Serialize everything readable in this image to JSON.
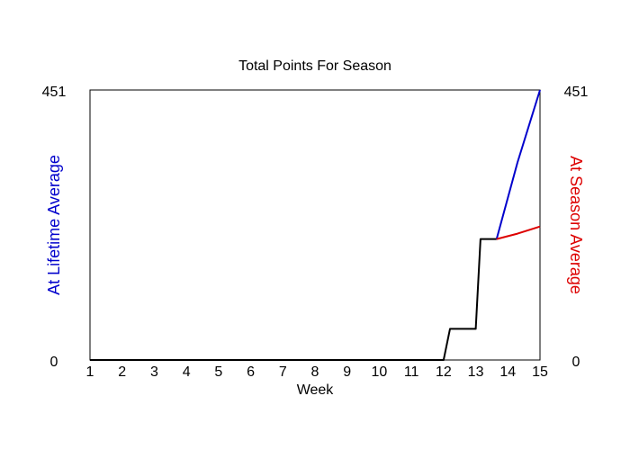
{
  "chart_data": {
    "type": "line",
    "title": "Total Points For Season",
    "xlabel": "Week",
    "ylabel_left": "At Lifetime Average",
    "ylabel_right": "At Season Average",
    "x_ticks": [
      "1",
      "2",
      "3",
      "4",
      "5",
      "6",
      "7",
      "8",
      "9",
      "10",
      "11",
      "12",
      "13",
      "14",
      "15"
    ],
    "xlim": [
      1,
      15
    ],
    "ylim": [
      0,
      451
    ],
    "y_tick_labels": [
      "0",
      "451"
    ],
    "colors": {
      "actual": "#000000",
      "lifetime": "#0000cc",
      "season": "#dd0000",
      "axis": "#000000"
    },
    "series": [
      {
        "key": "actual",
        "points": [
          [
            1,
            0
          ],
          [
            12,
            0
          ],
          [
            12.2,
            52
          ],
          [
            13,
            52
          ],
          [
            13.15,
            202
          ],
          [
            13.65,
            202
          ]
        ]
      },
      {
        "key": "lifetime",
        "points": [
          [
            13.65,
            202
          ],
          [
            14.3,
            330
          ],
          [
            15,
            451
          ]
        ]
      },
      {
        "key": "season",
        "points": [
          [
            13.65,
            202
          ],
          [
            14.3,
            211
          ],
          [
            15,
            223
          ]
        ]
      }
    ]
  }
}
